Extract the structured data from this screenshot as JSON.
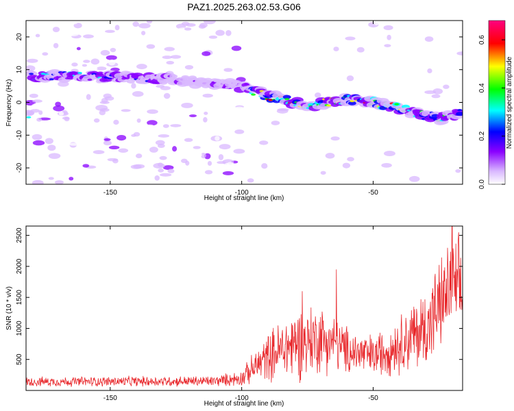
{
  "title": "PAZ1.2025.263.02.53.G06",
  "chart_data": [
    {
      "type": "heatmap",
      "xlabel": "Height of straight line (km)",
      "ylabel": "Frequency (Hz)",
      "xlim": [
        -182,
        -16
      ],
      "ylim": [
        -25,
        25
      ],
      "x_ticks": [
        -150,
        -100,
        -50
      ],
      "y_ticks": [
        -20,
        -10,
        0,
        10,
        20
      ],
      "colorbar": {
        "label": "Normalized spectral amplitude",
        "range": [
          0.0,
          0.68
        ],
        "ticks": [
          "0.0",
          "0.2",
          "0.4",
          "0.6"
        ],
        "colors": [
          "#ffffff",
          "#8a00ff",
          "#0000ff",
          "#00ffff",
          "#00ff00",
          "#ffff00",
          "#ff0000",
          "#ff00ff"
        ]
      },
      "ridge": [
        {
          "x": -180,
          "y": 8.0,
          "amp": 0.28
        },
        {
          "x": -160,
          "y": 8.0,
          "amp": 0.3
        },
        {
          "x": -140,
          "y": 7.5,
          "amp": 0.22
        },
        {
          "x": -120,
          "y": 6.5,
          "amp": 0.1
        },
        {
          "x": -100,
          "y": 5.0,
          "amp": 0.2
        },
        {
          "x": -90,
          "y": 2.0,
          "amp": 0.62
        },
        {
          "x": -75,
          "y": -1.0,
          "amp": 0.5
        },
        {
          "x": -60,
          "y": 1.0,
          "amp": 0.45
        },
        {
          "x": -50,
          "y": 0.0,
          "amp": 0.6
        },
        {
          "x": -35,
          "y": -3.0,
          "amp": 0.45
        },
        {
          "x": -25,
          "y": -5.0,
          "amp": 0.4
        },
        {
          "x": -18,
          "y": -3.5,
          "amp": 0.35
        }
      ]
    },
    {
      "type": "line",
      "xlabel": "Height of straight line (km)",
      "ylabel": "SNR (10 * v/v)",
      "xlim": [
        -182,
        -16
      ],
      "ylim": [
        0,
        2650
      ],
      "x_ticks": [
        -150,
        -100,
        -50
      ],
      "y_ticks": [
        500,
        1000,
        1500,
        2000,
        2500
      ],
      "series_color": "#e8262a",
      "envelope": [
        {
          "x": -182,
          "base": 140,
          "spread": 90
        },
        {
          "x": -110,
          "base": 150,
          "spread": 100
        },
        {
          "x": -100,
          "base": 200,
          "spread": 150
        },
        {
          "x": -90,
          "base": 550,
          "spread": 450
        },
        {
          "x": -80,
          "base": 750,
          "spread": 700
        },
        {
          "x": -70,
          "base": 850,
          "spread": 650
        },
        {
          "x": -60,
          "base": 650,
          "spread": 450
        },
        {
          "x": -50,
          "base": 550,
          "spread": 400
        },
        {
          "x": -40,
          "base": 750,
          "spread": 550
        },
        {
          "x": -30,
          "base": 1000,
          "spread": 800
        },
        {
          "x": -20,
          "base": 1700,
          "spread": 900
        },
        {
          "x": -16,
          "base": 1500,
          "spread": 900
        }
      ],
      "peaks": [
        {
          "x": -77,
          "y": 1600
        },
        {
          "x": -64,
          "y": 1950
        },
        {
          "x": -20,
          "y": 2650
        },
        {
          "x": -17.5,
          "y": 2550
        }
      ]
    }
  ]
}
